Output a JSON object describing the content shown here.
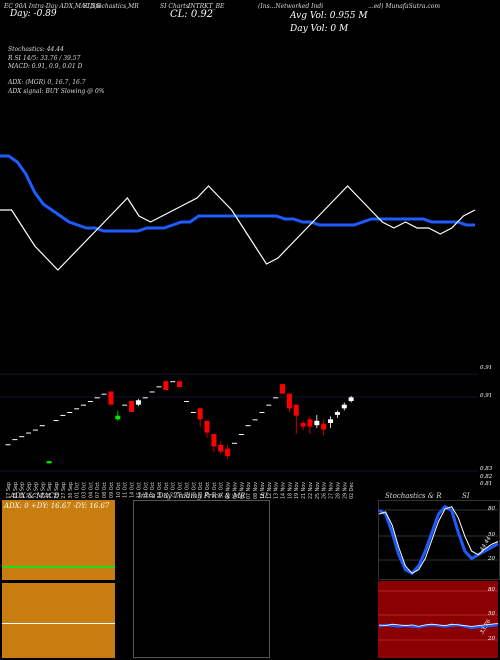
{
  "header": {
    "line1": "EC 90A Intra-Day ADX,MACD,R",
    "line1b": "SI,Stochastics,MR",
    "line1c": "SI Charts",
    "line1d": "INTRKT_BE",
    "line1e": "(Ins...Networked Indi",
    "line1f": "...ed) MunafaSutra.com",
    "close_label": "CL: 0.92",
    "day_label": "Day: -0.89",
    "avg_vol": "Avg Vol: 0.955 M",
    "day_vol": "Day Vol: 0   M"
  },
  "indicators": {
    "stochastics": "Stochastics: 44.44",
    "rsi": "R                SI 14/5: 33.76  / 39.57",
    "macd": "MACD: 0.91,  0.9,  0.01 D",
    "adx": "ADX:                         (MGR) 0,  16.7,  16.7",
    "adx_signal": "ADX  signal:                              BUY Slowing @ 0%"
  },
  "price_panel": {
    "right_labels": [
      "0.91",
      "0.83",
      "0.82",
      "0.81"
    ],
    "top_right": "0.93\n0.92"
  },
  "dates": [
    "17 Sep",
    "18 Sep",
    "19 Sep",
    "20 Sep",
    "23 Sep",
    "24 Sep",
    "25 Sep",
    "26 Sep",
    "27 Sep",
    "30 Sep",
    "01 Oct",
    "03 Oct",
    "04 Oct",
    "07 Oct",
    "08 Oct",
    "09 Oct",
    "10 Oct",
    "11 Oct",
    "14 Oct",
    "15 Oct",
    "16 Oct",
    "17 Oct",
    "18 Oct",
    "21 Oct",
    "22 Oct",
    "23 Oct",
    "24 Oct",
    "25 Oct",
    "28 Oct",
    "29 Oct",
    "30 Oct",
    "31 Oct",
    "04 Nov",
    "05 Nov",
    "06 Nov",
    "07 Nov",
    "08 Nov",
    "11 Nov",
    "12 Nov",
    "13 Nov",
    "14 Nov",
    "18 Nov",
    "19 Nov",
    "21 Nov",
    "22 Nov",
    "25 Nov",
    "26 Nov",
    "27 Nov",
    "28 Nov",
    "29 Nov",
    "02 Dec"
  ],
  "panels": {
    "adx_title": "ADX  & MACD",
    "adx_values": "ADX: 0   +DY: 16.67  -DY: 16.67",
    "mr_title": "Intra  Day Trading Price  & MR",
    "mr_si": "SI",
    "stoch_title": "Stochastics & R",
    "stoch_si": "SI",
    "stoch_labels": [
      "80",
      "50",
      "20"
    ],
    "rsi_labels": [
      "80",
      "50",
      "20"
    ],
    "stoch_value": "44.44",
    "rsi_value": "33.76"
  },
  "chart_data": {
    "type": "candlestick",
    "candles": [
      {
        "o": 0.846,
        "c": 0.846,
        "h": 0.846,
        "l": 0.846,
        "color": "white"
      },
      {
        "o": 0.853,
        "c": 0.853,
        "h": 0.853,
        "l": 0.853,
        "color": "white"
      },
      {
        "o": 0.857,
        "c": 0.857,
        "h": 0.857,
        "l": 0.857,
        "color": "white"
      },
      {
        "o": 0.862,
        "c": 0.862,
        "h": 0.862,
        "l": 0.862,
        "color": "white"
      },
      {
        "o": 0.866,
        "c": 0.866,
        "h": 0.866,
        "l": 0.866,
        "color": "white"
      },
      {
        "o": 0.872,
        "c": 0.872,
        "h": 0.872,
        "l": 0.872,
        "color": "white"
      },
      {
        "o": 0.82,
        "c": 0.823,
        "h": 0.823,
        "l": 0.82,
        "color": "green"
      },
      {
        "o": 0.879,
        "c": 0.879,
        "h": 0.879,
        "l": 0.879,
        "color": "white"
      },
      {
        "o": 0.886,
        "c": 0.886,
        "h": 0.886,
        "l": 0.886,
        "color": "white"
      },
      {
        "o": 0.89,
        "c": 0.89,
        "h": 0.89,
        "l": 0.89,
        "color": "white"
      },
      {
        "o": 0.895,
        "c": 0.895,
        "h": 0.895,
        "l": 0.895,
        "color": "white"
      },
      {
        "o": 0.9,
        "c": 0.9,
        "h": 0.9,
        "l": 0.9,
        "color": "white"
      },
      {
        "o": 0.905,
        "c": 0.905,
        "h": 0.905,
        "l": 0.905,
        "color": "white"
      },
      {
        "o": 0.91,
        "c": 0.91,
        "h": 0.91,
        "l": 0.91,
        "color": "white"
      },
      {
        "o": 0.915,
        "c": 0.915,
        "h": 0.915,
        "l": 0.915,
        "color": "white"
      },
      {
        "o": 0.918,
        "c": 0.9,
        "h": 0.918,
        "l": 0.9,
        "color": "red"
      },
      {
        "o": 0.88,
        "c": 0.885,
        "h": 0.892,
        "l": 0.878,
        "color": "green"
      },
      {
        "o": 0.9,
        "c": 0.9,
        "h": 0.9,
        "l": 0.9,
        "color": "white"
      },
      {
        "o": 0.905,
        "c": 0.89,
        "h": 0.905,
        "l": 0.89,
        "color": "red"
      },
      {
        "o": 0.9,
        "c": 0.906,
        "h": 0.908,
        "l": 0.898,
        "color": "white"
      },
      {
        "o": 0.91,
        "c": 0.91,
        "h": 0.91,
        "l": 0.91,
        "color": "white"
      },
      {
        "o": 0.918,
        "c": 0.918,
        "h": 0.918,
        "l": 0.918,
        "color": "white"
      },
      {
        "o": 0.925,
        "c": 0.925,
        "h": 0.925,
        "l": 0.925,
        "color": "white"
      },
      {
        "o": 0.932,
        "c": 0.92,
        "h": 0.932,
        "l": 0.92,
        "color": "red"
      },
      {
        "o": 0.932,
        "c": 0.932,
        "h": 0.932,
        "l": 0.932,
        "color": "white"
      },
      {
        "o": 0.932,
        "c": 0.924,
        "h": 0.932,
        "l": 0.924,
        "color": "red"
      },
      {
        "o": 0.905,
        "c": 0.905,
        "h": 0.905,
        "l": 0.905,
        "color": "white"
      },
      {
        "o": 0.89,
        "c": 0.89,
        "h": 0.89,
        "l": 0.89,
        "color": "white"
      },
      {
        "o": 0.895,
        "c": 0.88,
        "h": 0.895,
        "l": 0.87,
        "color": "red"
      },
      {
        "o": 0.878,
        "c": 0.862,
        "h": 0.878,
        "l": 0.855,
        "color": "red"
      },
      {
        "o": 0.86,
        "c": 0.843,
        "h": 0.86,
        "l": 0.835,
        "color": "red"
      },
      {
        "o": 0.845,
        "c": 0.836,
        "h": 0.85,
        "l": 0.832,
        "color": "red"
      },
      {
        "o": 0.84,
        "c": 0.83,
        "h": 0.845,
        "l": 0.826,
        "color": "red"
      },
      {
        "o": 0.848,
        "c": 0.848,
        "h": 0.848,
        "l": 0.848,
        "color": "white"
      },
      {
        "o": 0.86,
        "c": 0.86,
        "h": 0.86,
        "l": 0.86,
        "color": "white"
      },
      {
        "o": 0.872,
        "c": 0.872,
        "h": 0.872,
        "l": 0.872,
        "color": "white"
      },
      {
        "o": 0.88,
        "c": 0.88,
        "h": 0.88,
        "l": 0.88,
        "color": "white"
      },
      {
        "o": 0.89,
        "c": 0.89,
        "h": 0.89,
        "l": 0.89,
        "color": "white"
      },
      {
        "o": 0.9,
        "c": 0.9,
        "h": 0.9,
        "l": 0.9,
        "color": "white"
      },
      {
        "o": 0.91,
        "c": 0.91,
        "h": 0.91,
        "l": 0.91,
        "color": "white"
      },
      {
        "o": 0.928,
        "c": 0.915,
        "h": 0.928,
        "l": 0.915,
        "color": "red"
      },
      {
        "o": 0.915,
        "c": 0.895,
        "h": 0.915,
        "l": 0.89,
        "color": "red"
      },
      {
        "o": 0.9,
        "c": 0.885,
        "h": 0.9,
        "l": 0.86,
        "color": "red"
      },
      {
        "o": 0.875,
        "c": 0.87,
        "h": 0.878,
        "l": 0.865,
        "color": "red"
      },
      {
        "o": 0.88,
        "c": 0.87,
        "h": 0.884,
        "l": 0.86,
        "color": "red"
      },
      {
        "o": 0.878,
        "c": 0.872,
        "h": 0.886,
        "l": 0.868,
        "color": "white"
      },
      {
        "o": 0.874,
        "c": 0.866,
        "h": 0.88,
        "l": 0.858,
        "color": "red"
      },
      {
        "o": 0.875,
        "c": 0.88,
        "h": 0.884,
        "l": 0.868,
        "color": "white"
      },
      {
        "o": 0.886,
        "c": 0.89,
        "h": 0.892,
        "l": 0.882,
        "color": "white"
      },
      {
        "o": 0.895,
        "c": 0.9,
        "h": 0.903,
        "l": 0.892,
        "color": "white"
      },
      {
        "o": 0.905,
        "c": 0.91,
        "h": 0.912,
        "l": 0.903,
        "color": "white"
      }
    ],
    "blue_line": [
      0.79,
      0.79,
      0.78,
      0.76,
      0.73,
      0.71,
      0.7,
      0.69,
      0.68,
      0.675,
      0.67,
      0.67,
      0.665,
      0.665,
      0.665,
      0.665,
      0.665,
      0.67,
      0.67,
      0.67,
      0.675,
      0.68,
      0.68,
      0.69,
      0.69,
      0.69,
      0.69,
      0.69,
      0.69,
      0.69,
      0.69,
      0.69,
      0.69,
      0.685,
      0.685,
      0.68,
      0.68,
      0.675,
      0.675,
      0.675,
      0.675,
      0.675,
      0.68,
      0.685,
      0.685,
      0.685,
      0.685,
      0.685,
      0.685,
      0.685,
      0.68,
      0.68,
      0.68,
      0.68,
      0.675,
      0.675
    ],
    "white_line": [
      0.7,
      0.7,
      0.67,
      0.64,
      0.62,
      0.6,
      0.62,
      0.64,
      0.66,
      0.68,
      0.7,
      0.72,
      0.69,
      0.68,
      0.69,
      0.7,
      0.71,
      0.72,
      0.74,
      0.72,
      0.7,
      0.67,
      0.64,
      0.61,
      0.62,
      0.64,
      0.66,
      0.68,
      0.7,
      0.72,
      0.74,
      0.72,
      0.7,
      0.68,
      0.67,
      0.68,
      0.67,
      0.67,
      0.66,
      0.67,
      0.69,
      0.7
    ],
    "ylim": [
      0.8,
      0.95
    ]
  }
}
